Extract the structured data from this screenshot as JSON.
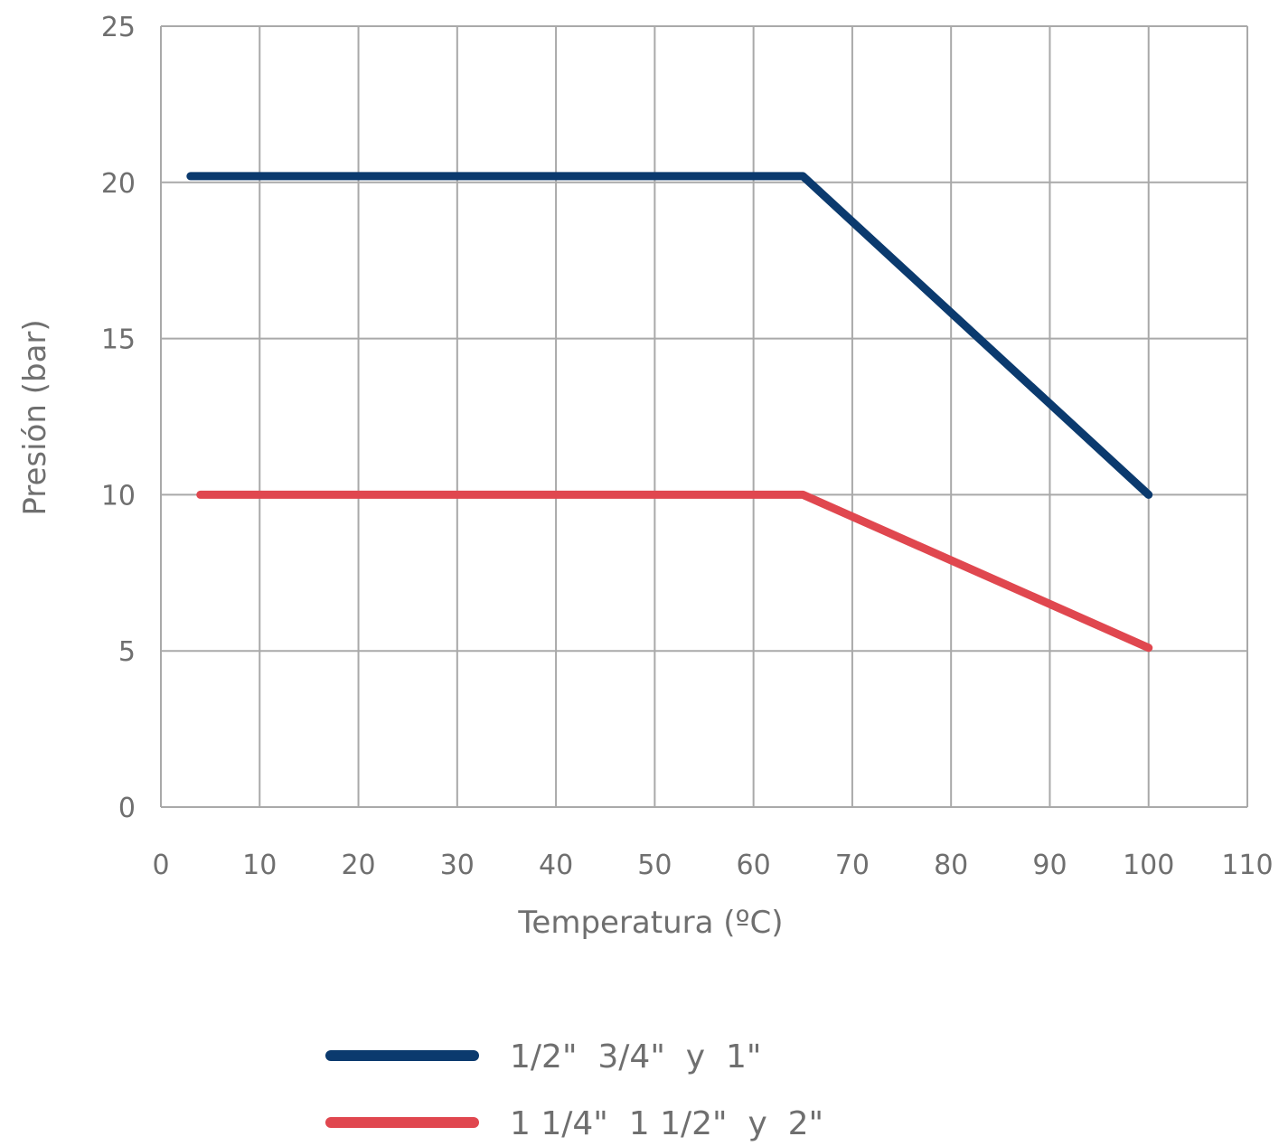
{
  "chart_data": {
    "type": "line",
    "title": "",
    "xlabel": "Temperatura (ºC)",
    "ylabel": "Presión (bar)",
    "xlim": [
      0,
      110
    ],
    "ylim": [
      0,
      25
    ],
    "xticks": [
      0,
      10,
      20,
      30,
      40,
      50,
      60,
      70,
      80,
      90,
      100,
      110
    ],
    "yticks": [
      0,
      5,
      10,
      15,
      20,
      25
    ],
    "grid": true,
    "legend_position": "bottom-center",
    "series": [
      {
        "name": "1/2\"  3/4\"  y  1\"",
        "color": "#0b3a6e",
        "points": [
          [
            3,
            20.2
          ],
          [
            65,
            20.2
          ],
          [
            100,
            10
          ]
        ]
      },
      {
        "name": "1 1/4\"  1 1/2\"  y  2\"",
        "color": "#e0474f",
        "points": [
          [
            4,
            10
          ],
          [
            65,
            10
          ],
          [
            100,
            5.1
          ]
        ]
      }
    ]
  }
}
